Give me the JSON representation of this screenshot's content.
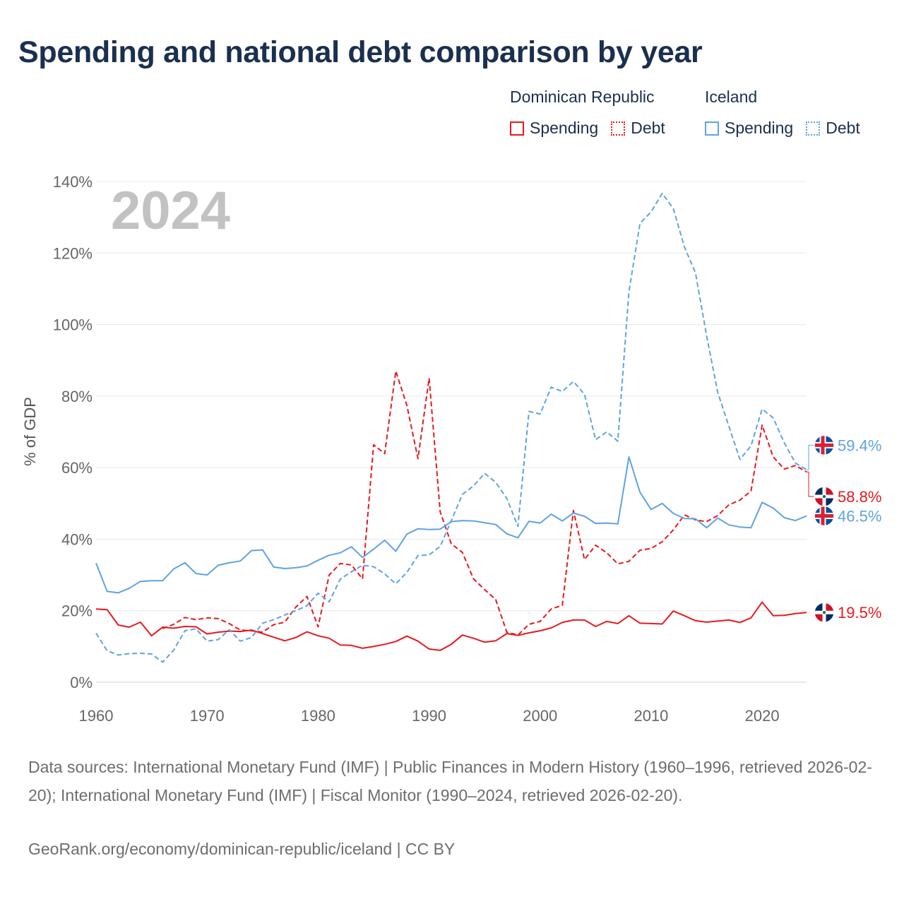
{
  "title": "Spending and national debt comparison by year",
  "legend": {
    "groups": [
      {
        "country": "Dominican Republic",
        "color": "#e8191e",
        "items": [
          {
            "label": "Spending",
            "style": "solid"
          },
          {
            "label": "Debt",
            "style": "dotted"
          }
        ]
      },
      {
        "country": "Iceland",
        "color": "#5fa3e0",
        "items": [
          {
            "label": "Spending",
            "style": "solid"
          },
          {
            "label": "Debt",
            "style": "dotted"
          }
        ]
      }
    ]
  },
  "footer": {
    "sources": "Data sources: International Monetary Fund (IMF) | Public Finances in Modern History (1960–1996, retrieved 2026-02-20); International Monetary Fund (IMF) | Fiscal Monitor (1990–2024, retrieved 2026-02-20).",
    "credit": "GeoRank.org/economy/dominican-republic/iceland | CC BY"
  },
  "chart_data": {
    "type": "line",
    "year_label": "2024",
    "ylabel": "% of GDP",
    "xlabel": "",
    "xlim": [
      1960,
      2024
    ],
    "ylim": [
      0,
      140
    ],
    "x_ticks": [
      1960,
      1970,
      1980,
      1990,
      2000,
      2010,
      2020
    ],
    "y_ticks": [
      0,
      20,
      40,
      60,
      80,
      100,
      120,
      140
    ],
    "y_tick_labels": [
      "0%",
      "20%",
      "40%",
      "60%",
      "80%",
      "100%",
      "120%",
      "140%"
    ],
    "grid": true,
    "series": [
      {
        "name": "Dominican Republic Spending",
        "color": "#e8191e",
        "style": "solid",
        "start_year": 1960,
        "end_label": "19.5%",
        "flag": "dominican-republic",
        "label_offset": 0,
        "values": [
          20.5,
          20.3,
          16.0,
          15.4,
          16.8,
          13.0,
          15.4,
          15.1,
          15.6,
          15.5,
          13.5,
          14.0,
          14.3,
          14.2,
          14.6,
          13.6,
          12.6,
          11.6,
          12.5,
          14.1,
          13.0,
          12.3,
          10.4,
          10.3,
          9.5,
          10.0,
          10.6,
          11.4,
          12.9,
          11.5,
          9.3,
          8.9,
          10.6,
          13.2,
          12.3,
          11.2,
          11.6,
          13.6,
          13.1,
          13.8,
          14.4,
          15.2,
          16.7,
          17.4,
          17.4,
          15.6,
          17.0,
          16.4,
          18.6,
          16.5,
          16.4,
          16.3,
          19.9,
          18.6,
          17.2,
          16.8,
          17.1,
          17.4,
          16.7,
          18.0,
          22.4,
          18.6,
          18.7,
          19.2,
          19.5
        ]
      },
      {
        "name": "Dominican Republic Debt",
        "color": "#e8191e",
        "style": "dashed",
        "start_year": 1966,
        "end_label": "58.8%",
        "flag": "dominican-republic",
        "label_offset": 6,
        "values": [
          15.0,
          16.2,
          18.1,
          17.5,
          18.0,
          17.8,
          16.4,
          14.6,
          14.4,
          14.0,
          16.1,
          16.8,
          21.0,
          24.0,
          15.5,
          30.0,
          33.2,
          32.8,
          28.9,
          66.4,
          63.9,
          87.0,
          77.4,
          62.5,
          85.0,
          47.6,
          38.7,
          36.3,
          28.9,
          25.9,
          23.1,
          14.0,
          13.2,
          16.2,
          17.0,
          20.5,
          21.5,
          48.0,
          34.3,
          38.3,
          36.2,
          33.1,
          33.8,
          36.9,
          37.4,
          39.3,
          42.6,
          46.8,
          45.4,
          44.9,
          46.6,
          49.6,
          50.9,
          53.5,
          71.9,
          63.0,
          59.6,
          60.6,
          58.8
        ]
      },
      {
        "name": "Iceland Spending",
        "color": "#5fa3e0",
        "style": "solid",
        "start_year": 1960,
        "end_label": "46.5%",
        "flag": "iceland",
        "label_offset": 0,
        "values": [
          33.3,
          25.4,
          25.0,
          26.3,
          28.2,
          28.4,
          28.4,
          31.7,
          33.4,
          30.4,
          30.0,
          32.7,
          33.4,
          33.9,
          36.8,
          37.0,
          32.2,
          31.8,
          32.0,
          32.5,
          34.1,
          35.5,
          36.2,
          37.9,
          34.9,
          37.2,
          39.7,
          36.6,
          41.4,
          42.9,
          42.7,
          42.8,
          44.9,
          45.2,
          45.1,
          44.6,
          44.1,
          41.5,
          40.4,
          45.0,
          44.5,
          47.0,
          45.1,
          47.3,
          46.4,
          44.4,
          44.5,
          44.3,
          63.0,
          53.1,
          48.3,
          50.0,
          47.2,
          45.8,
          45.7,
          43.2,
          45.9,
          44.0,
          43.4,
          43.2,
          50.3,
          48.7,
          46.0,
          45.2,
          46.5
        ]
      },
      {
        "name": "Iceland Debt",
        "color": "#5fa3e0",
        "style": "dashed",
        "start_year": 1960,
        "end_label": "59.4%",
        "flag": "iceland",
        "label_offset": -6,
        "values": [
          13.7,
          8.8,
          7.6,
          8.0,
          8.1,
          7.9,
          5.6,
          9.0,
          14.4,
          14.9,
          11.5,
          11.9,
          14.7,
          11.5,
          12.5,
          16.5,
          17.5,
          18.8,
          20.0,
          21.4,
          24.9,
          22.5,
          28.8,
          30.9,
          32.7,
          32.3,
          30.3,
          27.5,
          30.7,
          35.4,
          35.6,
          38.0,
          45.2,
          52.5,
          54.9,
          58.4,
          55.9,
          51.4,
          43.6,
          75.7,
          75.0,
          82.5,
          81.3,
          84.1,
          80.5,
          67.8,
          70.0,
          67.4,
          109.2,
          128.3,
          131.5,
          136.7,
          132.4,
          121.7,
          114.4,
          96.9,
          81.0,
          71.6,
          62.3,
          66.1,
          76.4,
          73.9,
          66.9,
          61.3,
          59.4
        ]
      }
    ]
  }
}
